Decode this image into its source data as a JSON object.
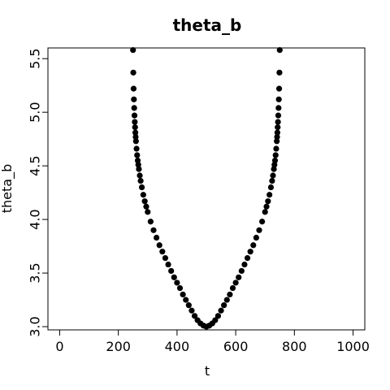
{
  "chart_data": {
    "type": "scatter",
    "title": "theta_b",
    "xlabel": "t",
    "ylabel": "theta_b",
    "xlim": [
      -40,
      1040
    ],
    "ylim": [
      2.97,
      5.6
    ],
    "x_ticks": [
      0,
      200,
      400,
      600,
      800,
      1000
    ],
    "y_ticks": [
      3.0,
      3.5,
      4.0,
      4.5,
      5.0,
      5.5
    ],
    "x_tick_labels": [
      "0",
      "200",
      "400",
      "600",
      "800",
      "1000"
    ],
    "y_tick_labels": [
      "3.0",
      "3.5",
      "4.0",
      "4.5",
      "5.0",
      "5.5"
    ],
    "grid": false,
    "point_color": "#000000",
    "series": [
      {
        "x": [
          250,
          251,
          252,
          253,
          254,
          255,
          256,
          257,
          258,
          259,
          260,
          262,
          264,
          266,
          268,
          270,
          273,
          276,
          280,
          285,
          290,
          295,
          300,
          310,
          320,
          330,
          340,
          350,
          360,
          370,
          380,
          390,
          400,
          410,
          420,
          430,
          440,
          450,
          460,
          470,
          480,
          490,
          500,
          510,
          520,
          530,
          540,
          550,
          560,
          570,
          580,
          590,
          600,
          610,
          620,
          630,
          640,
          650,
          660,
          670,
          680,
          690,
          700,
          705,
          710,
          715,
          720,
          724,
          727,
          730,
          732,
          734,
          736,
          738,
          740,
          741,
          742,
          743,
          744,
          745,
          746,
          747,
          748,
          749,
          750
        ],
        "y": [
          5.58,
          5.37,
          5.22,
          5.12,
          5.04,
          4.97,
          4.91,
          4.86,
          4.81,
          4.77,
          4.73,
          4.66,
          4.6,
          4.55,
          4.51,
          4.47,
          4.41,
          4.36,
          4.3,
          4.23,
          4.17,
          4.12,
          4.07,
          3.98,
          3.9,
          3.83,
          3.76,
          3.7,
          3.64,
          3.58,
          3.52,
          3.46,
          3.41,
          3.36,
          3.3,
          3.25,
          3.2,
          3.15,
          3.1,
          3.06,
          3.03,
          3.01,
          3.0,
          3.01,
          3.03,
          3.06,
          3.1,
          3.15,
          3.2,
          3.25,
          3.3,
          3.36,
          3.41,
          3.46,
          3.52,
          3.58,
          3.64,
          3.7,
          3.76,
          3.83,
          3.9,
          3.98,
          4.07,
          4.12,
          4.17,
          4.23,
          4.3,
          4.36,
          4.41,
          4.47,
          4.51,
          4.55,
          4.6,
          4.66,
          4.73,
          4.77,
          4.81,
          4.86,
          4.91,
          4.97,
          5.04,
          5.12,
          5.22,
          5.37,
          5.58
        ]
      }
    ]
  }
}
